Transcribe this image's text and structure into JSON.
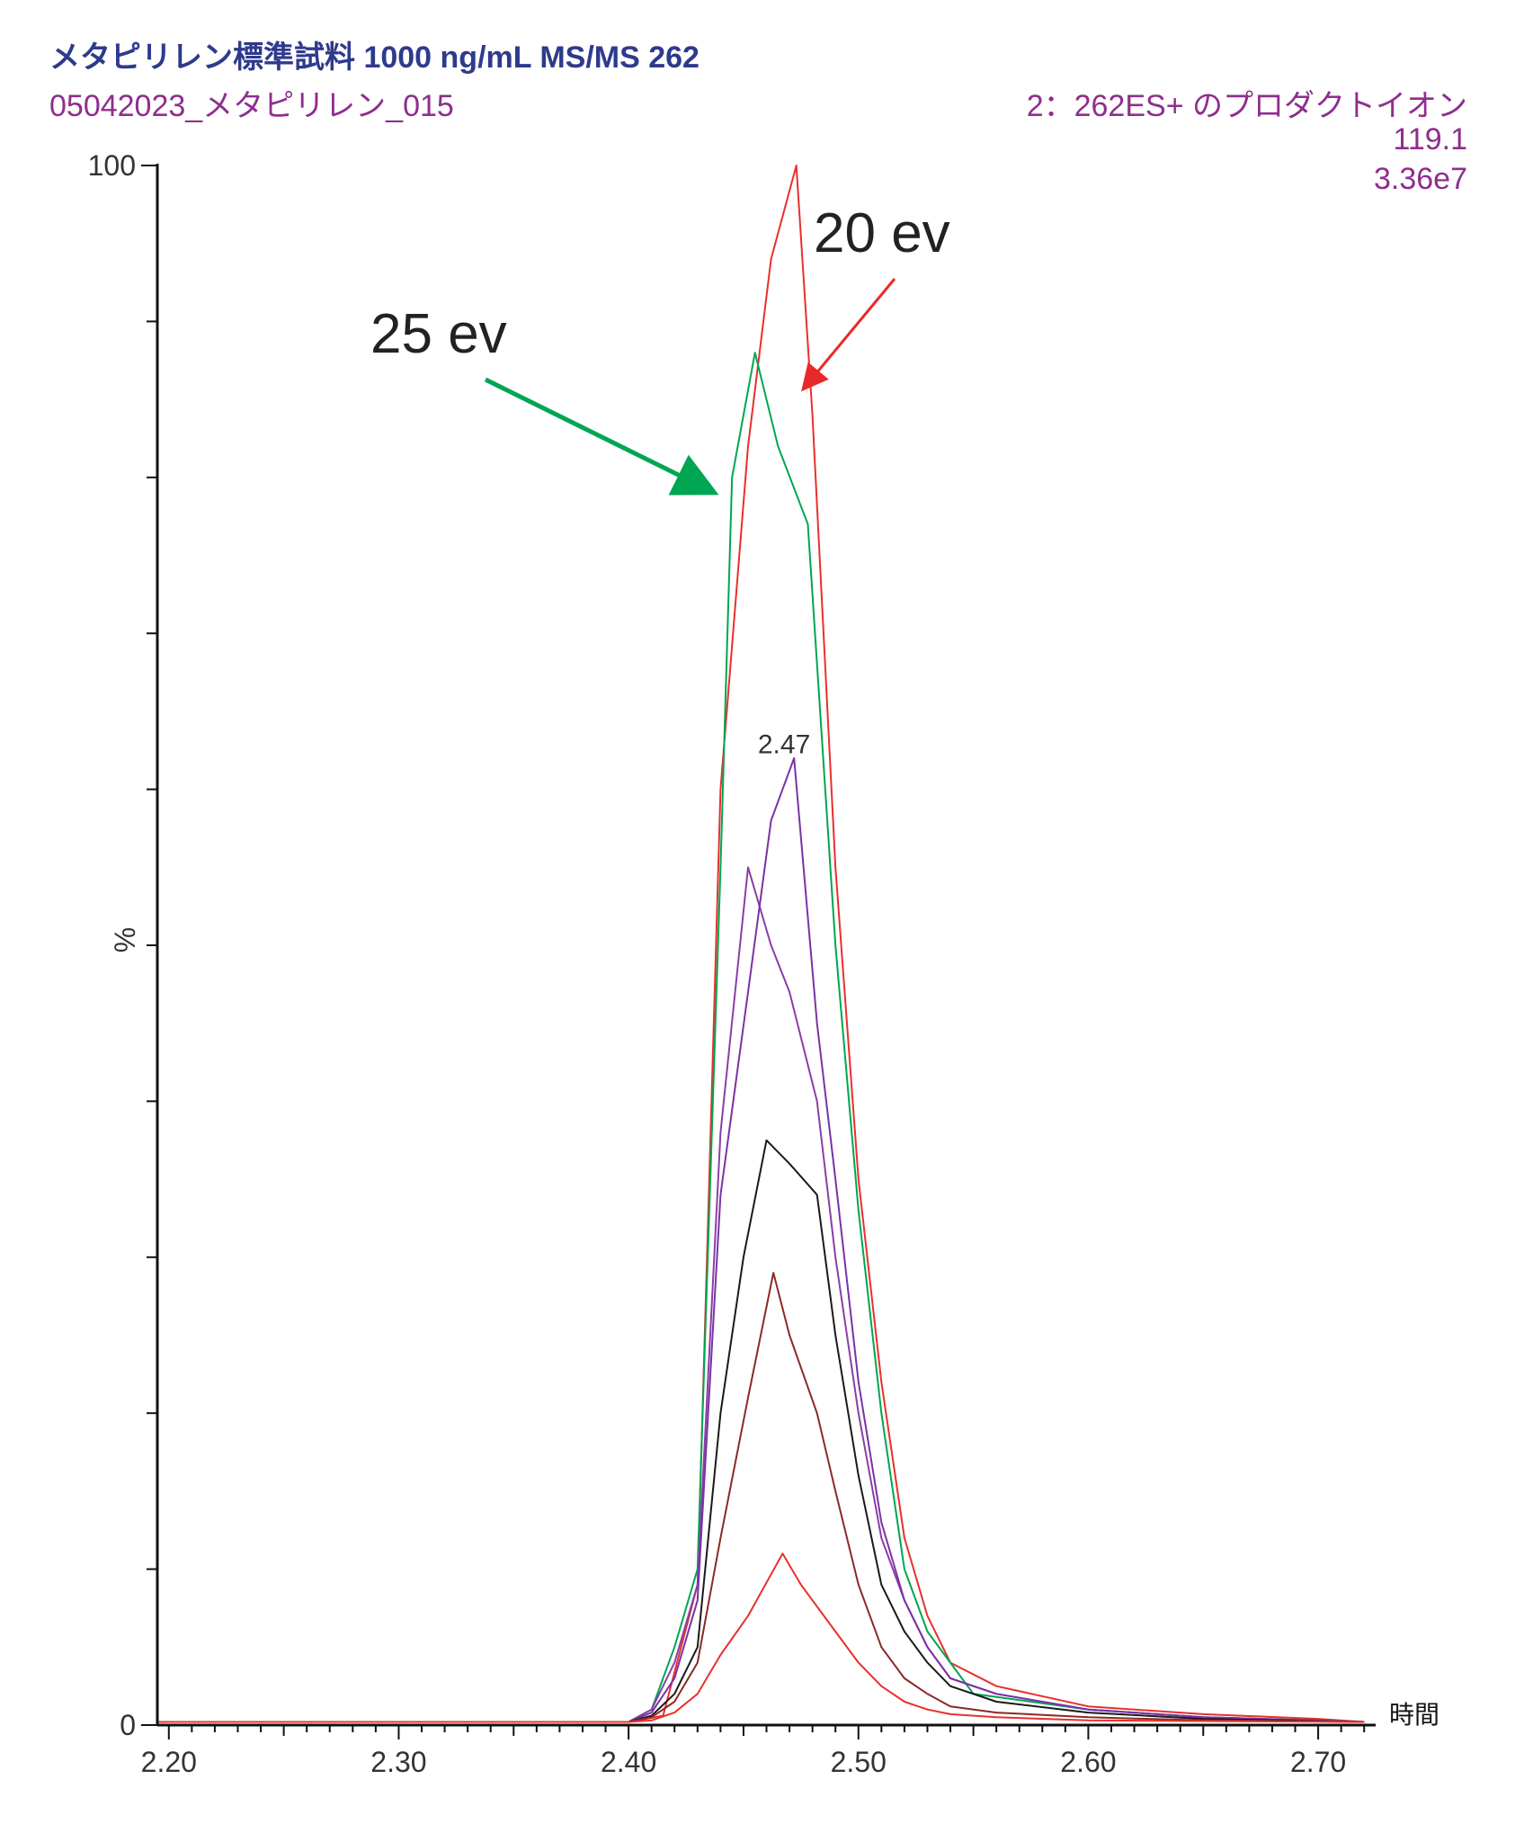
{
  "header": {
    "title": "メタピリレン標準試料 1000 ng/mL MS/MS 262",
    "sample_name": "05042023_メタピリレン_015",
    "scan_description": "2：262ES+ のプロダクトイオン",
    "product_mass": "119.1",
    "base_intensity": "3.36e7"
  },
  "chart_data": {
    "type": "line",
    "title": "メタピリレン標準試料 1000 ng/mL MS/MS 262",
    "xlabel": "時間",
    "ylabel": "%",
    "xlim": [
      2.195,
      2.725
    ],
    "ylim": [
      0,
      100
    ],
    "x_ticks": [
      "2.20",
      "2.30",
      "2.40",
      "2.50",
      "2.60",
      "2.70"
    ],
    "y_ticks": [
      "0",
      "100"
    ],
    "peak_label": {
      "text": "2.47",
      "x": 2.47,
      "y": 61.5
    },
    "annotations": [
      {
        "text": "20 ev",
        "color": "#e8292b"
      },
      {
        "text": "25 ev",
        "color": "#00a651"
      }
    ],
    "grid": false,
    "series": [
      {
        "color": "#e8302c",
        "points": [
          [
            2.195,
            0.2
          ],
          [
            2.4,
            0.2
          ],
          [
            2.415,
            0.6
          ],
          [
            2.43,
            9
          ],
          [
            2.44,
            60
          ],
          [
            2.452,
            82
          ],
          [
            2.462,
            94
          ],
          [
            2.473,
            100
          ],
          [
            2.48,
            84
          ],
          [
            2.49,
            55
          ],
          [
            2.5,
            35
          ],
          [
            2.51,
            22
          ],
          [
            2.52,
            12
          ],
          [
            2.53,
            7
          ],
          [
            2.54,
            4
          ],
          [
            2.56,
            2.5
          ],
          [
            2.6,
            1.2
          ],
          [
            2.65,
            0.7
          ],
          [
            2.7,
            0.4
          ],
          [
            2.72,
            0.2
          ]
        ]
      },
      {
        "color": "#00a651",
        "points": [
          [
            2.195,
            0.2
          ],
          [
            2.4,
            0.2
          ],
          [
            2.41,
            1
          ],
          [
            2.42,
            5
          ],
          [
            2.43,
            10
          ],
          [
            2.44,
            55
          ],
          [
            2.445,
            80
          ],
          [
            2.455,
            88
          ],
          [
            2.465,
            82
          ],
          [
            2.478,
            77
          ],
          [
            2.49,
            50
          ],
          [
            2.5,
            33
          ],
          [
            2.51,
            20
          ],
          [
            2.52,
            10
          ],
          [
            2.53,
            6
          ],
          [
            2.54,
            4
          ],
          [
            2.55,
            2
          ],
          [
            2.6,
            1
          ],
          [
            2.65,
            0.5
          ],
          [
            2.7,
            0.3
          ],
          [
            2.72,
            0.2
          ]
        ]
      },
      {
        "color": "#8a3ea8",
        "points": [
          [
            2.195,
            0.2
          ],
          [
            2.4,
            0.2
          ],
          [
            2.41,
            1
          ],
          [
            2.42,
            4
          ],
          [
            2.43,
            9
          ],
          [
            2.44,
            38
          ],
          [
            2.452,
            55
          ],
          [
            2.462,
            50
          ],
          [
            2.47,
            47
          ],
          [
            2.482,
            40
          ],
          [
            2.49,
            30
          ],
          [
            2.5,
            20
          ],
          [
            2.51,
            12
          ],
          [
            2.52,
            8
          ],
          [
            2.53,
            5
          ],
          [
            2.54,
            3
          ],
          [
            2.56,
            2
          ],
          [
            2.6,
            1
          ],
          [
            2.65,
            0.5
          ],
          [
            2.72,
            0.2
          ]
        ]
      },
      {
        "color": "#7a32a6",
        "points": [
          [
            2.195,
            0.2
          ],
          [
            2.4,
            0.2
          ],
          [
            2.41,
            0.8
          ],
          [
            2.42,
            3
          ],
          [
            2.43,
            8
          ],
          [
            2.44,
            34
          ],
          [
            2.452,
            47
          ],
          [
            2.462,
            58
          ],
          [
            2.472,
            62
          ],
          [
            2.482,
            45
          ],
          [
            2.49,
            35
          ],
          [
            2.5,
            22
          ],
          [
            2.51,
            13
          ],
          [
            2.52,
            8
          ],
          [
            2.53,
            5
          ],
          [
            2.54,
            3
          ],
          [
            2.56,
            2
          ],
          [
            2.6,
            1
          ],
          [
            2.65,
            0.5
          ],
          [
            2.72,
            0.2
          ]
        ]
      },
      {
        "color": "#1a1a1a",
        "points": [
          [
            2.195,
            0.2
          ],
          [
            2.4,
            0.2
          ],
          [
            2.41,
            0.6
          ],
          [
            2.42,
            2
          ],
          [
            2.43,
            5
          ],
          [
            2.44,
            20
          ],
          [
            2.45,
            30
          ],
          [
            2.46,
            37.5
          ],
          [
            2.47,
            36
          ],
          [
            2.482,
            34
          ],
          [
            2.49,
            25
          ],
          [
            2.5,
            16
          ],
          [
            2.51,
            9
          ],
          [
            2.52,
            6
          ],
          [
            2.53,
            4
          ],
          [
            2.54,
            2.5
          ],
          [
            2.56,
            1.5
          ],
          [
            2.6,
            0.8
          ],
          [
            2.65,
            0.4
          ],
          [
            2.72,
            0.2
          ]
        ]
      },
      {
        "color": "#8b2a25",
        "points": [
          [
            2.195,
            0.2
          ],
          [
            2.4,
            0.2
          ],
          [
            2.41,
            0.5
          ],
          [
            2.42,
            1.5
          ],
          [
            2.43,
            4
          ],
          [
            2.44,
            12
          ],
          [
            2.452,
            21
          ],
          [
            2.463,
            29
          ],
          [
            2.47,
            25
          ],
          [
            2.482,
            20
          ],
          [
            2.49,
            15
          ],
          [
            2.5,
            9
          ],
          [
            2.51,
            5
          ],
          [
            2.52,
            3
          ],
          [
            2.53,
            2
          ],
          [
            2.54,
            1.2
          ],
          [
            2.56,
            0.8
          ],
          [
            2.6,
            0.5
          ],
          [
            2.65,
            0.3
          ],
          [
            2.72,
            0.2
          ]
        ]
      },
      {
        "color": "#e8302c",
        "points": [
          [
            2.195,
            0.2
          ],
          [
            2.4,
            0.2
          ],
          [
            2.41,
            0.3
          ],
          [
            2.42,
            0.8
          ],
          [
            2.43,
            2
          ],
          [
            2.44,
            4.5
          ],
          [
            2.452,
            7
          ],
          [
            2.467,
            11
          ],
          [
            2.475,
            9
          ],
          [
            2.49,
            6
          ],
          [
            2.5,
            4
          ],
          [
            2.51,
            2.5
          ],
          [
            2.52,
            1.5
          ],
          [
            2.53,
            1
          ],
          [
            2.54,
            0.7
          ],
          [
            2.56,
            0.5
          ],
          [
            2.6,
            0.3
          ],
          [
            2.72,
            0.2
          ]
        ]
      }
    ]
  }
}
